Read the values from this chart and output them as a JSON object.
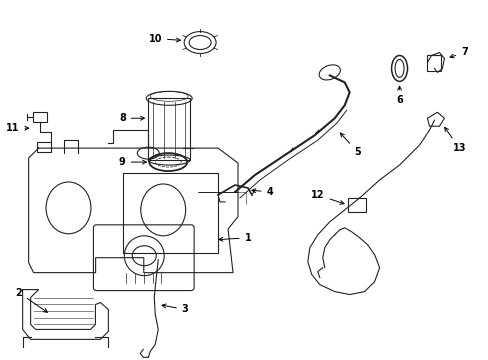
{
  "background_color": "#ffffff",
  "line_color": "#222222",
  "text_color": "#000000",
  "fig_width": 4.89,
  "fig_height": 3.6,
  "dpi": 100
}
